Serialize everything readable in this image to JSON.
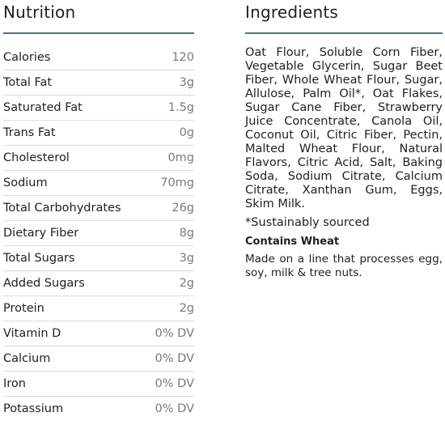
{
  "nutrition": {
    "title": "Nutrition",
    "rows": [
      {
        "label": "Calories",
        "value": "120"
      },
      {
        "label": "Total Fat",
        "value": "3g"
      },
      {
        "label": "Saturated Fat",
        "value": "1.5g"
      },
      {
        "label": "Trans Fat",
        "value": "0g"
      },
      {
        "label": "Cholesterol",
        "value": "0mg"
      },
      {
        "label": "Sodium",
        "value": "70mg"
      },
      {
        "label": "Total Carbohydrates",
        "value": "26g"
      },
      {
        "label": "Dietary Fiber",
        "value": "8g"
      },
      {
        "label": "Total Sugars",
        "value": "3g"
      },
      {
        "label": "Added Sugars",
        "value": "2g"
      },
      {
        "label": "Protein",
        "value": "2g"
      },
      {
        "label": "Vitamin D",
        "value": "0% DV"
      },
      {
        "label": "Calcium",
        "value": "0% DV"
      },
      {
        "label": "Iron",
        "value": "0% DV"
      },
      {
        "label": "Potassium",
        "value": "0% DV"
      }
    ]
  },
  "ingredients": {
    "title": "Ingredients",
    "text": "Oat Flour, Soluble Corn Fiber, Vegetable Glycerin, Sugar Beet Fiber, Whole Wheat Flour, Sugar, Allulose, Palm Oil*, Oat Flakes, Sugar Cane Fiber, Strawberry Juice Concentrate, Canola Oil, Coconut Oil, Citric Fiber, Pectin, Malted Wheat Flour, Natural Flavors, Citric Acid, Salt, Baking Soda, Sodium Citrate, Calcium Citrate, Xanthan Gum, Eggs, Skim Milk.",
    "note": "*Sustainably sourced",
    "allergen": "Contains Wheat",
    "process": "Made on a line that processes egg, soy, milk & tree nuts."
  },
  "colors": {
    "rule": "#4f7184",
    "value_text": "#7a7a7a",
    "row_divider": "#dcdcdc"
  }
}
